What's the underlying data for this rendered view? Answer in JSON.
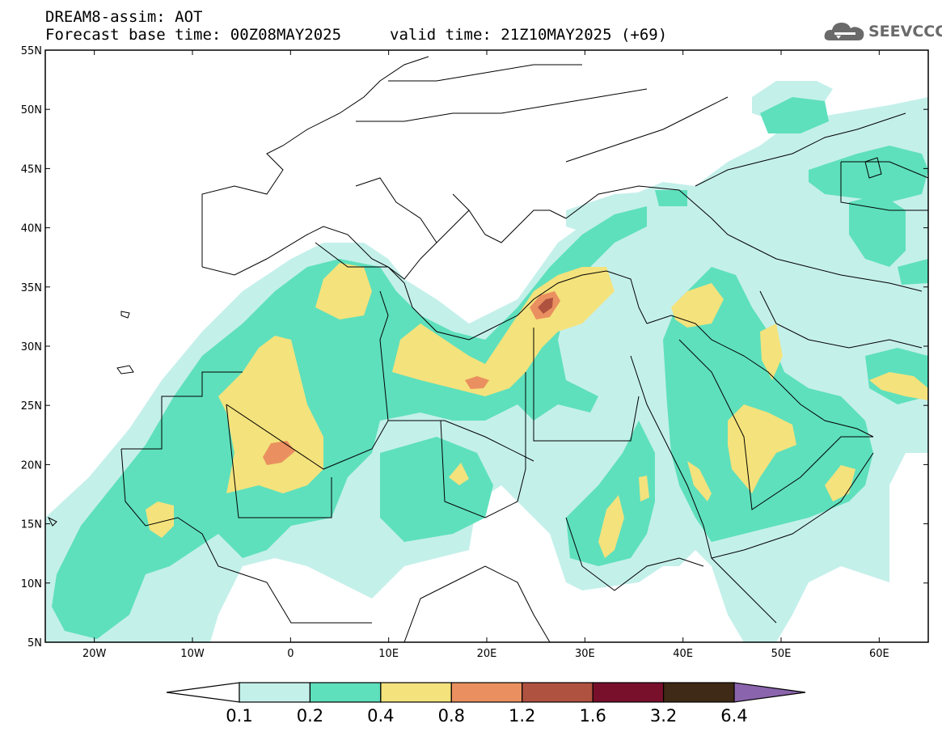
{
  "title": {
    "line1": "DREAM8-assim: AOT",
    "line2": "Forecast base time: 00Z08MAY2025",
    "valid": "valid time: 21Z10MAY2025 (+69)"
  },
  "logo": {
    "text": "SEEVCCC",
    "icon": "cloud-icon"
  },
  "map": {
    "lon_range": [
      -25,
      65
    ],
    "lat_range": [
      5,
      55
    ],
    "x_ticks": [
      {
        "lon": -20,
        "label": "20W"
      },
      {
        "lon": -10,
        "label": "10W"
      },
      {
        "lon": 0,
        "label": "0"
      },
      {
        "lon": 10,
        "label": "10E"
      },
      {
        "lon": 20,
        "label": "20E"
      },
      {
        "lon": 30,
        "label": "30E"
      },
      {
        "lon": 40,
        "label": "40E"
      },
      {
        "lon": 50,
        "label": "50E"
      },
      {
        "lon": 60,
        "label": "60E"
      }
    ],
    "y_ticks": [
      {
        "lat": 55,
        "label": "55N"
      },
      {
        "lat": 50,
        "label": "50N"
      },
      {
        "lat": 45,
        "label": "45N"
      },
      {
        "lat": 40,
        "label": "40N"
      },
      {
        "lat": 35,
        "label": "35N"
      },
      {
        "lat": 30,
        "label": "30N"
      },
      {
        "lat": 25,
        "label": "25N"
      },
      {
        "lat": 20,
        "label": "20N"
      },
      {
        "lat": 15,
        "label": "15N"
      },
      {
        "lat": 10,
        "label": "10N"
      },
      {
        "lat": 5,
        "label": "5N"
      }
    ]
  },
  "colorbar": {
    "levels": [
      "0.1",
      "0.2",
      "0.4",
      "0.8",
      "1.2",
      "1.6",
      "3.2",
      "6.4"
    ],
    "colors": {
      "below": "#ffffff",
      "c1": "#c4f0ea",
      "c2": "#5ee0bc",
      "c3": "#f4e27c",
      "c4": "#ea9060",
      "c5": "#b05240",
      "c6": "#78102c",
      "c7": "#3e2a16",
      "above": "#8a64ac"
    }
  }
}
